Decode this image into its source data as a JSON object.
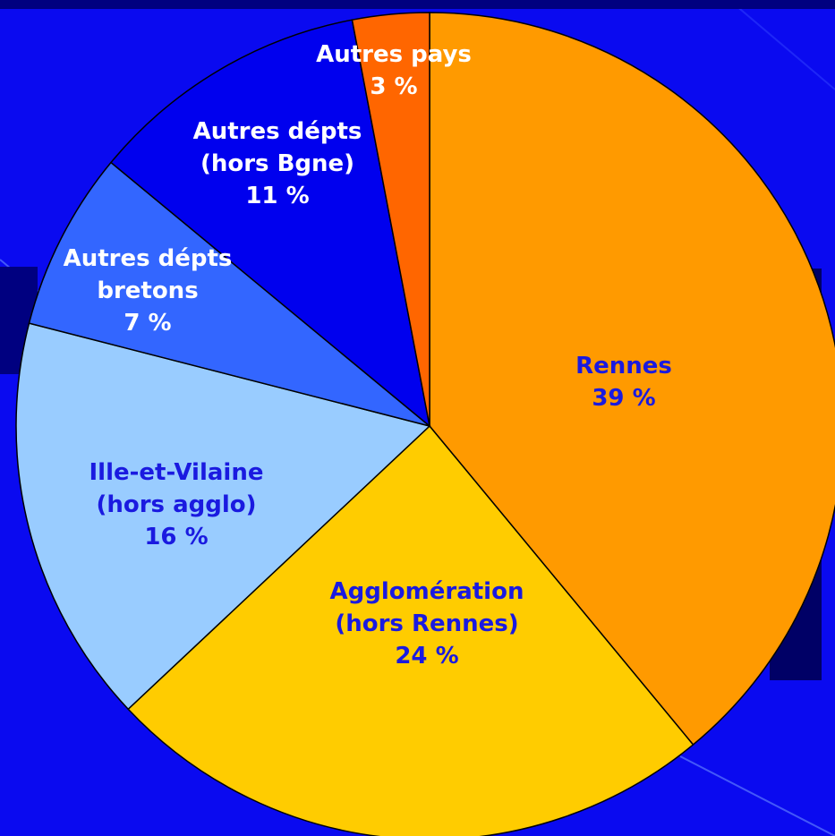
{
  "chart_data": {
    "type": "pie",
    "title": "",
    "start_angle_deg": 0,
    "direction": "clockwise",
    "slices": [
      {
        "lines": [
          "Rennes",
          "39 %"
        ],
        "value": 39,
        "color": "#ff9a00",
        "text_color": "#1a1ae0"
      },
      {
        "lines": [
          "Agglomération",
          "(hors Rennes)",
          "24 %"
        ],
        "value": 24,
        "color": "#ffcc00",
        "text_color": "#1a1ae0"
      },
      {
        "lines": [
          "Ille-et-Vilaine",
          "(hors agglo)",
          "16 %"
        ],
        "value": 16,
        "color": "#99ccff",
        "text_color": "#1a1ae0"
      },
      {
        "lines": [
          "Autres dépts",
          "bretons",
          "7 %"
        ],
        "value": 7,
        "color": "#3366ff",
        "text_color": "#ffffff"
      },
      {
        "lines": [
          "Autres dépts",
          "(hors Bgne)",
          "11 %"
        ],
        "value": 11,
        "color": "#0000ee",
        "text_color": "#ffffff"
      },
      {
        "lines": [
          "Autres pays",
          "3 %"
        ],
        "value": 3,
        "color": "#ff6600",
        "text_color": "#ffffff"
      }
    ],
    "colors": {
      "background": "#0a0af0",
      "shadow": "#000066",
      "outline": "#000000"
    }
  }
}
